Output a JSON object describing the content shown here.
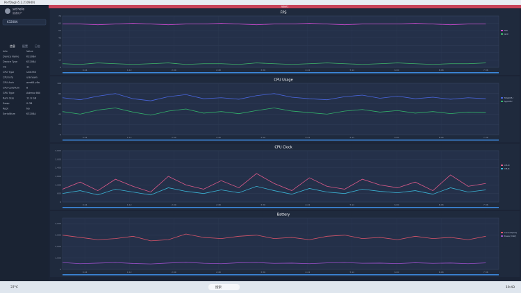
{
  "window_title": "PerfDog(v5.2.210940)",
  "user": {
    "name": "set hello",
    "role": "普通用户"
  },
  "device": {
    "label": "K3208A"
  },
  "sidebar": {
    "tabs": [
      "信息",
      "配置",
      "日志"
    ],
    "rows": [
      [
        "Info",
        "Value"
      ],
      [
        "Device Name",
        "K3208A"
      ],
      [
        "Device Type",
        "K3208A"
      ],
      [
        "OS",
        "11"
      ],
      [
        "CPU Type",
        "sm8350"
      ],
      [
        "CPU Info",
        "unknown"
      ],
      [
        "CPU Arch",
        "arm64-v8a"
      ],
      [
        "CPU Coreflum",
        "8"
      ],
      [
        "GPU Type",
        "Adreno 660"
      ],
      [
        "Ram Size",
        "11.6 GB"
      ],
      [
        "Swap",
        "0 GB"
      ],
      [
        "Root",
        "No"
      ],
      [
        "SerialNum",
        "K3208A"
      ]
    ]
  },
  "tab_label": "label1",
  "charts": [
    {
      "type": "line",
      "title": "FPS",
      "x": [
        0,
        19,
        38,
        57,
        76,
        95,
        114,
        133,
        152,
        171,
        190,
        209,
        228,
        247,
        266,
        285,
        304,
        323,
        342,
        361,
        380,
        399,
        418,
        437,
        456
      ],
      "xlim": [
        0,
        470
      ],
      "xticks": [
        {
          "value": 24,
          "label": "0:24"
        },
        {
          "value": 72,
          "label": "1:12"
        },
        {
          "value": 120,
          "label": "2:00"
        },
        {
          "value": 168,
          "label": "2:48"
        },
        {
          "value": 216,
          "label": "3:36"
        },
        {
          "value": 264,
          "label": "4:24"
        },
        {
          "value": 312,
          "label": "5:12"
        },
        {
          "value": 360,
          "label": "6:00"
        },
        {
          "value": 408,
          "label": "6:48"
        },
        {
          "value": 456,
          "label": "7:36"
        }
      ],
      "ylim": [
        0,
        70
      ],
      "yticks": [
        0,
        10,
        20,
        30,
        40,
        50,
        60,
        70
      ],
      "series": [
        {
          "name": "FPS",
          "color": "#d44bd6",
          "values": [
            59,
            59,
            58,
            59,
            60,
            59,
            58,
            59,
            59,
            60,
            59,
            58,
            59,
            59,
            60,
            59,
            58,
            59,
            59,
            59,
            60,
            59,
            58,
            59,
            59
          ]
        },
        {
          "name": "Jank",
          "color": "#3fb86a",
          "values": [
            5,
            4,
            6,
            5,
            4,
            5,
            6,
            4,
            5,
            5,
            4,
            6,
            5,
            4,
            5,
            6,
            5,
            4,
            5,
            6,
            5,
            4,
            5,
            5,
            6
          ]
        }
      ]
    },
    {
      "type": "line",
      "title": "CPU Usage",
      "x": [
        0,
        19,
        38,
        57,
        76,
        95,
        114,
        133,
        152,
        171,
        190,
        209,
        228,
        247,
        266,
        285,
        304,
        323,
        342,
        361,
        380,
        399,
        418,
        437,
        456
      ],
      "xlim": [
        0,
        470
      ],
      "xticks": [
        {
          "value": 24,
          "label": "0:24"
        },
        {
          "value": 72,
          "label": "1:12"
        },
        {
          "value": 120,
          "label": "2:00"
        },
        {
          "value": 168,
          "label": "2:48"
        },
        {
          "value": 216,
          "label": "3:36"
        },
        {
          "value": 264,
          "label": "4:24"
        },
        {
          "value": 312,
          "label": "5:12"
        },
        {
          "value": 360,
          "label": "6:00"
        },
        {
          "value": 408,
          "label": "6:48"
        },
        {
          "value": 456,
          "label": "7:36"
        }
      ],
      "ylim": [
        0,
        100
      ],
      "yticks": [
        0,
        20,
        40,
        60,
        80,
        100
      ],
      "series": [
        {
          "name": "TotalCPU",
          "color": "#4a67e0",
          "values": [
            72,
            68,
            75,
            80,
            70,
            66,
            74,
            78,
            70,
            72,
            69,
            76,
            80,
            73,
            70,
            68,
            74,
            77,
            71,
            75,
            70,
            73,
            69,
            72,
            70
          ]
        },
        {
          "name": "AppCPU",
          "color": "#33b36b",
          "values": [
            45,
            40,
            48,
            52,
            44,
            38,
            46,
            50,
            42,
            45,
            41,
            47,
            52,
            46,
            43,
            40,
            46,
            49,
            44,
            47,
            42,
            45,
            41,
            44,
            43
          ]
        }
      ]
    },
    {
      "type": "line",
      "title": "CPU Clock",
      "x": [
        0,
        19,
        38,
        57,
        76,
        95,
        114,
        133,
        152,
        171,
        190,
        209,
        228,
        247,
        266,
        285,
        304,
        323,
        342,
        361,
        380,
        399,
        418,
        437,
        456
      ],
      "xlim": [
        0,
        470
      ],
      "xticks": [
        {
          "value": 24,
          "label": "0:24"
        },
        {
          "value": 72,
          "label": "1:12"
        },
        {
          "value": 120,
          "label": "2:00"
        },
        {
          "value": 168,
          "label": "2:48"
        },
        {
          "value": 216,
          "label": "3:36"
        },
        {
          "value": 264,
          "label": "4:24"
        },
        {
          "value": 312,
          "label": "5:12"
        },
        {
          "value": 360,
          "label": "6:00"
        },
        {
          "value": 408,
          "label": "6:48"
        },
        {
          "value": 456,
          "label": "7:36"
        }
      ],
      "ylim": [
        0,
        3600
      ],
      "yticks": [
        0,
        600,
        {
          "value": 1200,
          "label": "1,200"
        },
        {
          "value": 1800,
          "label": "1,800"
        },
        {
          "value": 2400,
          "label": "2,400"
        },
        {
          "value": 3000,
          "label": "3,000"
        },
        {
          "value": 3600,
          "label": "3,600"
        }
      ],
      "series": [
        {
          "name": "CPU0",
          "color": "#e05a8a",
          "values": [
            900,
            1400,
            800,
            1600,
            1100,
            700,
            1800,
            1200,
            900,
            1500,
            1000,
            2000,
            1300,
            800,
            1700,
            1100,
            900,
            1600,
            1200,
            1000,
            1400,
            800,
            1900,
            1100,
            1300
          ]
        },
        {
          "name": "CPU4",
          "color": "#3bb5d6",
          "values": [
            600,
            800,
            500,
            900,
            700,
            500,
            1000,
            750,
            600,
            850,
            650,
            1100,
            800,
            550,
            950,
            700,
            600,
            900,
            750,
            650,
            800,
            550,
            1000,
            700,
            850
          ]
        }
      ]
    },
    {
      "type": "line",
      "title": "Battery",
      "x": [
        0,
        19,
        38,
        57,
        76,
        95,
        114,
        133,
        152,
        171,
        190,
        209,
        228,
        247,
        266,
        285,
        304,
        323,
        342,
        361,
        380,
        399,
        418,
        437,
        456
      ],
      "xlim": [
        0,
        470
      ],
      "xticks": [
        {
          "value": 24,
          "label": "0:24"
        },
        {
          "value": 72,
          "label": "1:12"
        },
        {
          "value": 120,
          "label": "2:00"
        },
        {
          "value": 168,
          "label": "2:48"
        },
        {
          "value": 216,
          "label": "3:36"
        },
        {
          "value": 264,
          "label": "4:24"
        },
        {
          "value": 312,
          "label": "5:12"
        },
        {
          "value": 360,
          "label": "6:00"
        },
        {
          "value": 408,
          "label": "6:48"
        },
        {
          "value": 456,
          "label": "7:36"
        }
      ],
      "ylim": [
        0,
        4500
      ],
      "yticks": [
        0,
        {
          "value": 1000,
          "label": "1,000"
        },
        {
          "value": 2000,
          "label": "2,000"
        },
        {
          "value": 3000,
          "label": "3,000"
        },
        {
          "value": 4000,
          "label": "4,000"
        }
      ],
      "series": [
        {
          "name": "Current(mA)",
          "color": "#d9546a",
          "values": [
            3000,
            2800,
            2600,
            2700,
            2900,
            2500,
            2600,
            3100,
            2800,
            2700,
            2900,
            3000,
            2700,
            2800,
            2600,
            2900,
            3000,
            2700,
            2800,
            2600,
            2900,
            2700,
            2800,
            2600,
            2900
          ]
        },
        {
          "name": "Power(mW)",
          "color": "#9a4fc9",
          "values": [
            600,
            500,
            550,
            600,
            520,
            480,
            560,
            620,
            540,
            500,
            580,
            600,
            530,
            550,
            500,
            570,
            600,
            540,
            550,
            510,
            580,
            530,
            560,
            500,
            570
          ]
        }
      ]
    }
  ],
  "taskbar": {
    "weather": "37°C",
    "search": "搜索",
    "time": "19:43"
  }
}
